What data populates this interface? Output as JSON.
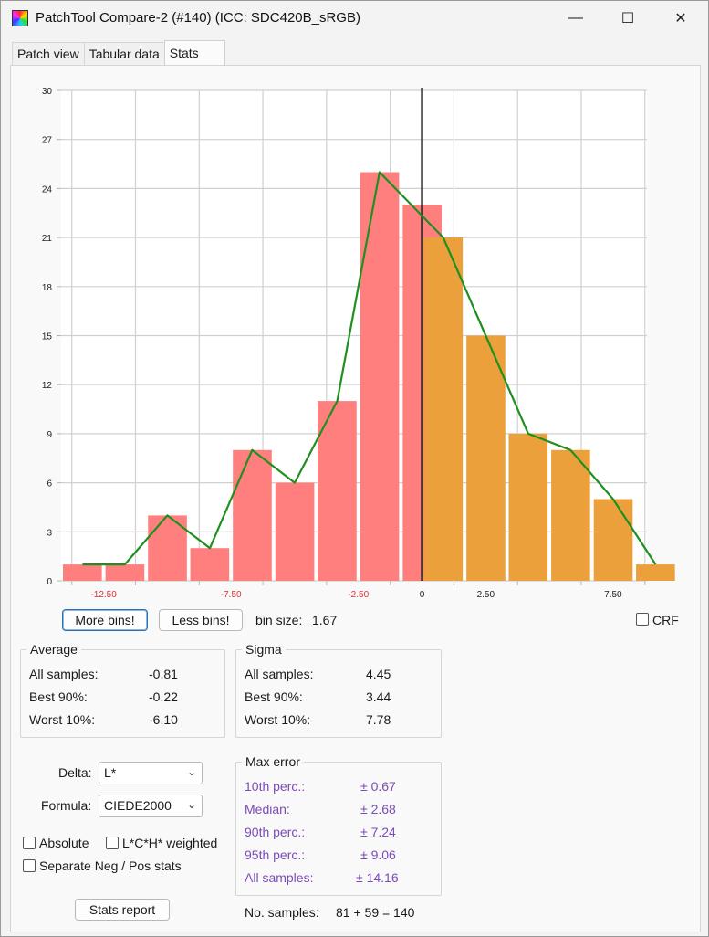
{
  "window": {
    "title": "PatchTool Compare-2 (#140) (ICC: SDC420B_sRGB)",
    "controls": {
      "minimize": "—",
      "maximize": "☐",
      "close": "✕"
    }
  },
  "tabs": [
    {
      "label": "Patch view"
    },
    {
      "label": "Tabular data"
    },
    {
      "label": "Stats",
      "active": true
    }
  ],
  "chart_data": {
    "type": "bar",
    "title": "",
    "xlabel": "",
    "ylabel": "",
    "xlim": [
      -14.17,
      8.83
    ],
    "ylim": [
      0,
      30
    ],
    "y_ticks": [
      0,
      3,
      6,
      9,
      12,
      15,
      18,
      21,
      24,
      27,
      30
    ],
    "x_ticks": [
      {
        "value": -12.5,
        "label": "-12.50"
      },
      {
        "value": -7.5,
        "label": "-7.50"
      },
      {
        "value": -2.5,
        "label": "-2.50"
      },
      {
        "value": 0,
        "label": "0"
      },
      {
        "value": 2.5,
        "label": "2.50"
      },
      {
        "value": 7.5,
        "label": "7.50"
      }
    ],
    "bin_size": 1.67,
    "bins_start": [
      -14.17,
      -12.5,
      -10.83,
      -9.17,
      -7.5,
      -5.83,
      -4.17,
      -2.5,
      -0.83,
      0,
      1.67,
      3.33,
      5.0,
      6.67,
      8.33
    ],
    "bins": [
      {
        "start": -14.17,
        "value": 1,
        "sign": "neg"
      },
      {
        "start": -12.5,
        "value": 1,
        "sign": "neg"
      },
      {
        "start": -10.83,
        "value": 4,
        "sign": "neg"
      },
      {
        "start": -9.17,
        "value": 2,
        "sign": "neg"
      },
      {
        "start": -7.5,
        "value": 8,
        "sign": "neg"
      },
      {
        "start": -5.83,
        "value": 6,
        "sign": "neg"
      },
      {
        "start": -4.17,
        "value": 11,
        "sign": "neg"
      },
      {
        "start": -2.5,
        "value": 25,
        "sign": "neg"
      },
      {
        "start": -0.83,
        "value": 23,
        "sign": "neg"
      },
      {
        "start": 0,
        "value": 21,
        "sign": "pos"
      },
      {
        "start": 1.67,
        "value": 15,
        "sign": "pos"
      },
      {
        "start": 3.33,
        "value": 9,
        "sign": "pos"
      },
      {
        "start": 5.0,
        "value": 8,
        "sign": "pos"
      },
      {
        "start": 6.67,
        "value": 5,
        "sign": "pos"
      },
      {
        "start": 8.33,
        "value": 1,
        "sign": "pos"
      }
    ],
    "distribution_line": [
      {
        "x": -13.33,
        "y": 1
      },
      {
        "x": -11.67,
        "y": 1
      },
      {
        "x": -10.0,
        "y": 4
      },
      {
        "x": -8.33,
        "y": 2
      },
      {
        "x": -6.67,
        "y": 8
      },
      {
        "x": -5.0,
        "y": 6
      },
      {
        "x": -3.33,
        "y": 11
      },
      {
        "x": -1.67,
        "y": 25
      },
      {
        "x": 0.83,
        "y": 21
      },
      {
        "x": 2.5,
        "y": 15
      },
      {
        "x": 4.17,
        "y": 9
      },
      {
        "x": 5.83,
        "y": 8
      },
      {
        "x": 7.5,
        "y": 5
      },
      {
        "x": 9.17,
        "y": 1
      }
    ],
    "zero_line": 0,
    "grid": true,
    "colors": {
      "neg": "#ff7f7f",
      "pos": "#eba03c",
      "line": "#1f8f1f",
      "zero": "#000000",
      "neg_tick": "#e03030"
    }
  },
  "controls": {
    "more_bins": "More bins!",
    "less_bins": "Less bins!",
    "bin_size_label": "bin size:",
    "bin_size_value": "1.67",
    "crf_label": "CRF"
  },
  "average": {
    "title": "Average",
    "rows": [
      {
        "label": "All samples:",
        "value": "-0.81"
      },
      {
        "label": "Best 90%:",
        "value": "-0.22"
      },
      {
        "label": "Worst 10%:",
        "value": "-6.10"
      }
    ]
  },
  "sigma": {
    "title": "Sigma",
    "rows": [
      {
        "label": "All samples:",
        "value": "4.45"
      },
      {
        "label": "Best 90%:",
        "value": "3.44"
      },
      {
        "label": "Worst 10%:",
        "value": "7.78"
      }
    ]
  },
  "settings": {
    "delta_label": "Delta:",
    "delta_value": "L*",
    "formula_label": "Formula:",
    "formula_value": "CIEDE2000",
    "absolute_label": "Absolute",
    "lch_weighted_label": "L*C*H* weighted",
    "separate_label": "Separate Neg / Pos stats",
    "stats_report": "Stats report"
  },
  "max_error": {
    "title": "Max error",
    "rows": [
      {
        "label": "10th perc.:",
        "value": "± 0.67"
      },
      {
        "label": "Median:",
        "value": "± 2.68"
      },
      {
        "label": "90th perc.:",
        "value": "± 7.24"
      },
      {
        "label": "95th perc.:",
        "value": "± 9.06"
      },
      {
        "label": "All samples:",
        "value": "± 14.16"
      }
    ]
  },
  "samples": {
    "label": "No. samples:",
    "value": "81 + 59 = 140"
  }
}
